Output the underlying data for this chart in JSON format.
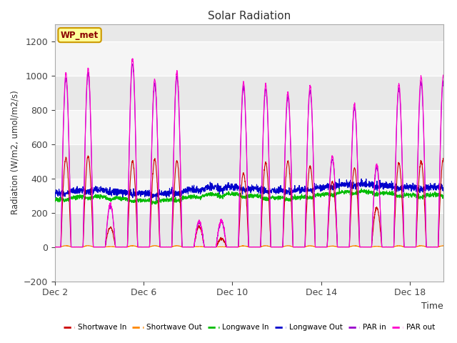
{
  "title": "Solar Radiation",
  "ylabel": "Radiation (W/m2, umol/m2/s)",
  "xlabel": "Time",
  "station_label": "WP_met",
  "ylim": [
    -200,
    1300
  ],
  "yticks": [
    -200,
    0,
    200,
    400,
    600,
    800,
    1000,
    1200
  ],
  "xlim_start": 0,
  "xlim_end": 17.5,
  "xtick_positions": [
    0,
    4,
    8,
    12,
    16
  ],
  "xtick_labels": [
    "Dec 2",
    "Dec 6",
    "Dec 10",
    "Dec 14",
    "Dec 18"
  ],
  "fig_bg": "#ffffff",
  "plot_bg": "#e8e8e8",
  "band_color": "#f5f5f5",
  "colors": {
    "shortwave_in": "#cc0000",
    "shortwave_out": "#ff8800",
    "longwave_in": "#00bb00",
    "longwave_out": "#0000cc",
    "par_in": "#9900cc",
    "par_out": "#ff00cc"
  },
  "legend_labels": [
    "Shortwave In",
    "Shortwave Out",
    "Longwave In",
    "Longwave Out",
    "PAR in",
    "PAR out"
  ],
  "num_days": 18,
  "pts_per_day": 144
}
